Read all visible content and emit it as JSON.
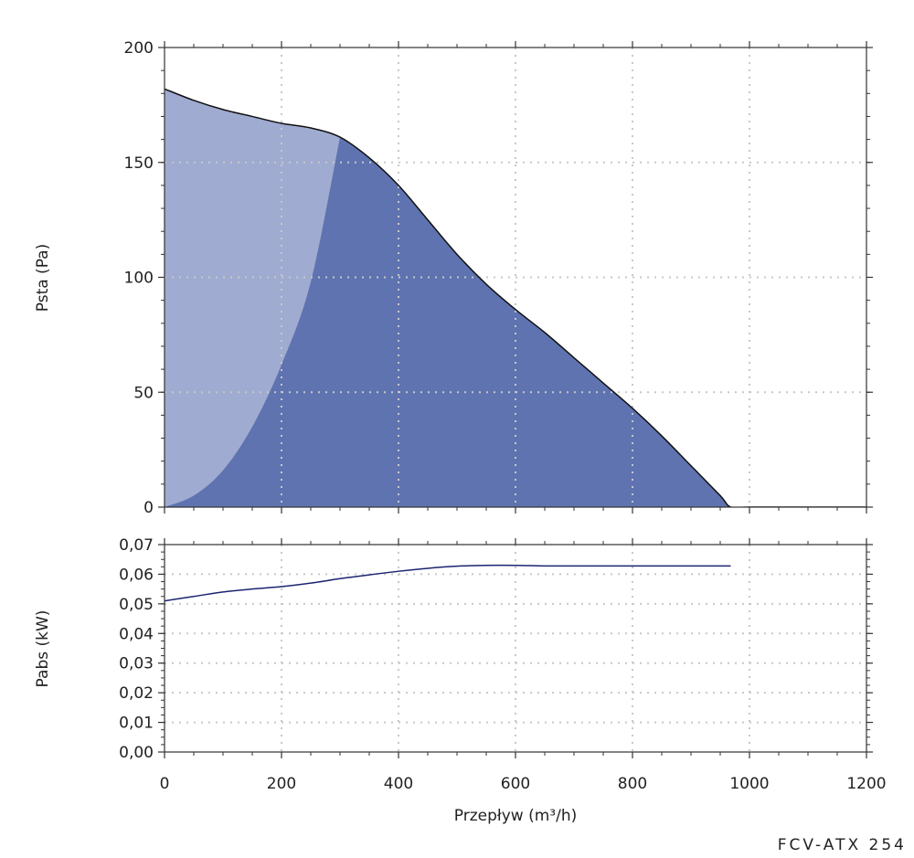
{
  "model_label": "FCV-ATX 254",
  "chart_data": [
    {
      "type": "area",
      "ylabel": "Psta (Pa)",
      "xlim": [
        0,
        1200
      ],
      "ylim": [
        0,
        200
      ],
      "x_ticks": [
        0,
        200,
        400,
        600,
        800,
        1000,
        1200
      ],
      "y_ticks": [
        0,
        50,
        100,
        150,
        200
      ],
      "y_tick_labels": [
        "0",
        "50",
        "100",
        "150",
        "200"
      ],
      "grid": true,
      "colors": {
        "light_area": "#9fabd0",
        "dark_area": "#5e73b0",
        "curve": "#111111",
        "grid": "#c8c8c8"
      },
      "series": [
        {
          "x": [
            0,
            50,
            100,
            150,
            200,
            250,
            300,
            350,
            400,
            450,
            500,
            550,
            600,
            650,
            700,
            750,
            800,
            850,
            900,
            950,
            968,
            1000,
            1100,
            1200
          ],
          "y": [
            182,
            177,
            173,
            170,
            167,
            165,
            161,
            152,
            140,
            125,
            110,
            97,
            86,
            76,
            65,
            54,
            43,
            31,
            18,
            5,
            0,
            0,
            0,
            0
          ]
        },
        {
          "x": [
            0,
            50,
            100,
            150,
            200,
            250,
            300
          ],
          "y": [
            0,
            5,
            16,
            35,
            62,
            98,
            161
          ]
        }
      ]
    },
    {
      "type": "line",
      "xlabel": "Przepływ (m³/h)",
      "ylabel": "Pabs (kW)",
      "xlim": [
        0,
        1200
      ],
      "ylim": [
        0,
        0.07
      ],
      "x_ticks": [
        0,
        200,
        400,
        600,
        800,
        1000,
        1200
      ],
      "x_tick_labels": [
        "0",
        "200",
        "400",
        "600",
        "800",
        "1000",
        "1200"
      ],
      "y_ticks": [
        0,
        0.01,
        0.02,
        0.03,
        0.04,
        0.05,
        0.06,
        0.07
      ],
      "y_tick_labels": [
        "0,00",
        "0,01",
        "0,02",
        "0,03",
        "0,04",
        "0,05",
        "0,06",
        "0,07"
      ],
      "grid": true,
      "colors": {
        "curve": "#1c2470",
        "grid": "#c8c8c8"
      },
      "series": [
        {
          "x": [
            0,
            50,
            100,
            150,
            200,
            250,
            300,
            350,
            400,
            450,
            500,
            550,
            600,
            650,
            700,
            800,
            900,
            968
          ],
          "y": [
            0.051,
            0.0525,
            0.054,
            0.055,
            0.0558,
            0.057,
            0.0585,
            0.0598,
            0.061,
            0.062,
            0.0627,
            0.063,
            0.063,
            0.0628,
            0.0628,
            0.0628,
            0.0628,
            0.0628
          ]
        }
      ]
    }
  ]
}
